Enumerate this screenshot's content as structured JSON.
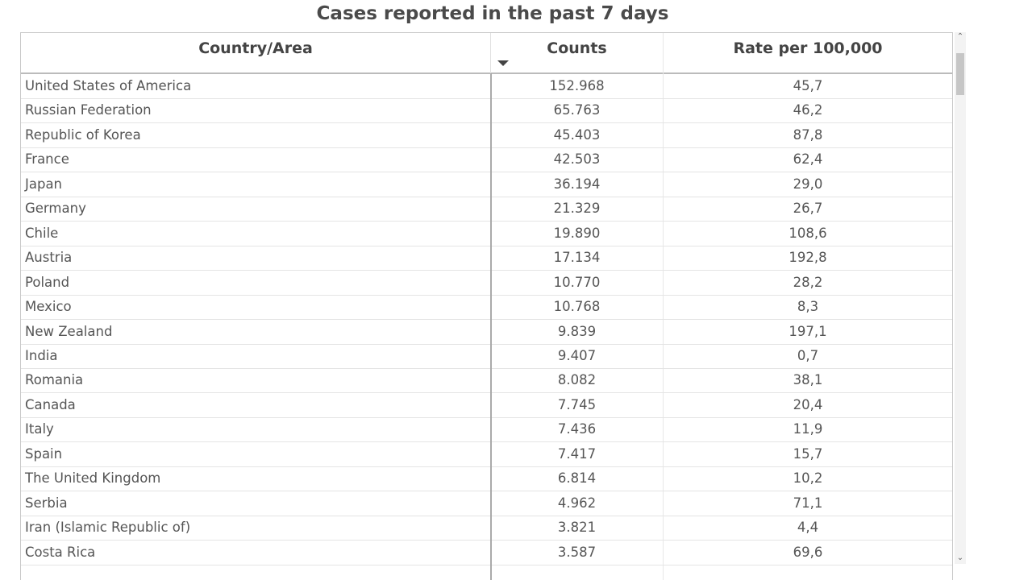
{
  "title": "Cases reported in the past 7 days",
  "table": {
    "columns": [
      "Country/Area",
      "Counts",
      "Rate per 100,000"
    ],
    "rows": [
      [
        "United States of America",
        "152.968",
        "45,7"
      ],
      [
        "Russian Federation",
        "65.763",
        "46,2"
      ],
      [
        "Republic of Korea",
        "45.403",
        "87,8"
      ],
      [
        "France",
        "42.503",
        "62,4"
      ],
      [
        "Japan",
        "36.194",
        "29,0"
      ],
      [
        "Germany",
        "21.329",
        "26,7"
      ],
      [
        "Chile",
        "19.890",
        "108,6"
      ],
      [
        "Austria",
        "17.134",
        "192,8"
      ],
      [
        "Poland",
        "10.770",
        "28,2"
      ],
      [
        "Mexico",
        "10.768",
        "8,3"
      ],
      [
        "New Zealand",
        "9.839",
        "197,1"
      ],
      [
        "India",
        "9.407",
        "0,7"
      ],
      [
        "Romania",
        "8.082",
        "38,1"
      ],
      [
        "Canada",
        "7.745",
        "20,4"
      ],
      [
        "Italy",
        "7.436",
        "11,9"
      ],
      [
        "Spain",
        "7.417",
        "15,7"
      ],
      [
        "The United Kingdom",
        "6.814",
        "10,2"
      ],
      [
        "Serbia",
        "4.962",
        "71,1"
      ],
      [
        "Iran (Islamic Republic of)",
        "3.821",
        "4,4"
      ],
      [
        "Costa Rica",
        "3.587",
        "69,6"
      ]
    ]
  }
}
